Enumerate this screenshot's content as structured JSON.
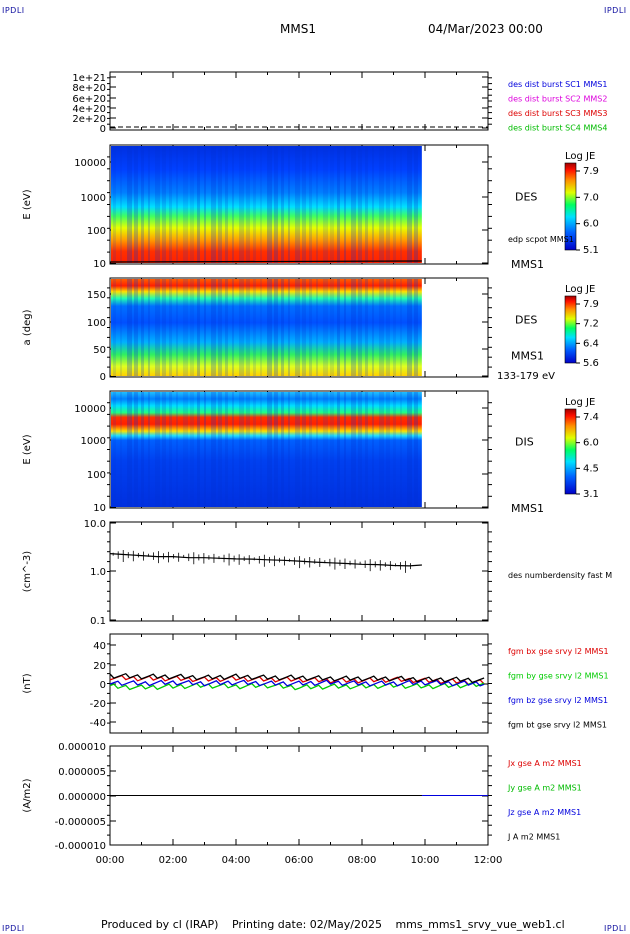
{
  "corner_label": "IPDLI",
  "header": {
    "mission": "MMS1",
    "datetime": "04/Mar/2023 00:00"
  },
  "footer": {
    "produced_by": "Produced by cl (IRAP)",
    "printing_date": "Printing date: 02/May/2025",
    "file_name": "mms_mms1_srvy_vue_web1.cl"
  },
  "chart_data": [
    {
      "type": "line",
      "ylim": [
        0,
        1.2e+21
      ],
      "ytick_labels": [
        "1e+21",
        "8e+20",
        "6e+20",
        "4e+20",
        "2e+20",
        "0"
      ],
      "legend_placement": "right",
      "series": [
        {
          "name": "des dist burst SC1 MMS1",
          "color": "#0000dd"
        },
        {
          "name": "des dist burst SC2 MMS2",
          "color": "#dd00dd"
        },
        {
          "name": "des dist burst SC3 MMS3",
          "color": "#dd0000"
        },
        {
          "name": "des dist burst SC4 MMS4",
          "color": "#00bb00"
        }
      ],
      "values": [
        0,
        0,
        0,
        0
      ]
    },
    {
      "type": "heatmap",
      "ylabel": "E (eV)",
      "yscale": "log",
      "ylim": [
        10,
        20000
      ],
      "ytick_labels": [
        "10000",
        "1000",
        "100",
        "10"
      ],
      "instrument": "DES",
      "spacecraft": "MMS1",
      "overlay_line": "edp scpot MMS1",
      "colorbar": {
        "label": "Log JE",
        "min": 5.1,
        "max": 8.0,
        "tick_labels": [
          "7.9",
          "7.0",
          "6.0",
          "5.1"
        ]
      },
      "data_end_hour": 9.9
    },
    {
      "type": "heatmap",
      "ylabel": "a (deg)",
      "ylim": [
        0,
        180
      ],
      "ytick_labels": [
        "150",
        "100",
        "50",
        "0"
      ],
      "instrument": "DES",
      "spacecraft": "MMS1",
      "energy_range": "133-179 eV",
      "colorbar": {
        "label": "Log JE",
        "min": 5.6,
        "max": 8.0,
        "tick_labels": [
          "7.9",
          "7.2",
          "6.4",
          "5.6"
        ]
      },
      "data_end_hour": 9.9
    },
    {
      "type": "heatmap",
      "ylabel": "E (eV)",
      "yscale": "log",
      "ylim": [
        10,
        25000
      ],
      "ytick_labels": [
        "10000",
        "1000",
        "100",
        "10"
      ],
      "instrument": "DIS",
      "spacecraft": "MMS1",
      "colorbar": {
        "label": "Log JE",
        "min": 3.1,
        "max": 7.6,
        "tick_labels": [
          "7.4",
          "6.0",
          "4.5",
          "3.1"
        ]
      },
      "data_end_hour": 9.9
    },
    {
      "type": "line",
      "ylabel": "(cm^-3)",
      "yscale": "log",
      "ylim": [
        0.1,
        10
      ],
      "ytick_labels": [
        "10.0",
        "1.0",
        "0.1"
      ],
      "series": [
        {
          "name": "des numberdensity fast M",
          "color": "#000000",
          "x": [
            0.0,
            0.5,
            1.0,
            1.5,
            2.0,
            2.5,
            3.0,
            3.5,
            4.0,
            4.5,
            5.0,
            5.5,
            6.0,
            6.5,
            7.0,
            7.5,
            8.0,
            8.5,
            9.0,
            9.5,
            9.9
          ],
          "y": [
            2.3,
            2.2,
            2.1,
            2.0,
            2.0,
            1.9,
            1.9,
            1.85,
            1.8,
            1.78,
            1.72,
            1.68,
            1.62,
            1.55,
            1.5,
            1.45,
            1.4,
            1.38,
            1.32,
            1.3,
            1.35
          ]
        }
      ]
    },
    {
      "type": "line",
      "ylabel": "(nT)",
      "ylim": [
        -50,
        50
      ],
      "ytick_labels": [
        "40",
        "20",
        "0",
        "-20",
        "-40"
      ],
      "series": [
        {
          "name": "fgm bx gse srvy l2 MMS1",
          "color": "#dd0000",
          "x": [
            0,
            1,
            2,
            3,
            4,
            5,
            6,
            7,
            8,
            9,
            10,
            11,
            12
          ],
          "y": [
            6,
            5,
            5,
            4,
            5,
            4,
            4,
            3,
            3,
            4,
            3,
            2,
            1
          ]
        },
        {
          "name": "fgm by gse srvy l2 MMS1",
          "color": "#00cc00",
          "x": [
            0,
            1,
            2,
            3,
            4,
            5,
            6,
            7,
            8,
            9,
            10,
            11,
            12
          ],
          "y": [
            -3,
            -4,
            -3,
            -2,
            -3,
            -2,
            -4,
            -3,
            -3,
            -2,
            -3,
            -2,
            -1
          ]
        },
        {
          "name": "fgm bz gse srvy l2 MMS1",
          "color": "#0000dd",
          "x": [
            0,
            1,
            2,
            3,
            4,
            5,
            6,
            7,
            8,
            9,
            10,
            11,
            12
          ],
          "y": [
            1,
            0,
            1,
            0,
            1,
            0,
            0,
            1,
            0,
            0,
            1,
            0,
            0
          ]
        },
        {
          "name": "fgm bt gse srvy l2 MMS1",
          "color": "#000000",
          "x": [
            0,
            1,
            2,
            3,
            4,
            5,
            6,
            7,
            8,
            9,
            10,
            11,
            12
          ],
          "y": [
            8,
            7,
            7,
            6,
            7,
            6,
            6,
            5,
            5,
            5,
            4,
            4,
            3
          ]
        }
      ]
    },
    {
      "type": "line",
      "ylabel": "(A/m2)",
      "ylim": [
        -1e-05,
        1e-05
      ],
      "ytick_labels": [
        "0.000010",
        "0.000005",
        "0.000000",
        "-0.000005",
        "-0.000010"
      ],
      "xtick_labels": [
        "00:00",
        "02:00",
        "04:00",
        "06:00",
        "08:00",
        "10:00",
        "12:00"
      ],
      "xlim_hours": [
        0,
        12
      ],
      "series": [
        {
          "name": "Jx gse A m2 MMS1",
          "color": "#dd0000",
          "x": [
            0,
            12
          ],
          "y": [
            0,
            0
          ]
        },
        {
          "name": "Jy gse A m2 MMS1",
          "color": "#00bb00",
          "x": [
            0,
            12
          ],
          "y": [
            0,
            0
          ]
        },
        {
          "name": "Jz gse A m2 MMS1",
          "color": "#0000dd",
          "x": [
            0,
            12
          ],
          "y": [
            0,
            0
          ]
        },
        {
          "name": "J A m2 MMS1",
          "color": "#000000",
          "x": [
            0,
            9.9
          ],
          "y": [
            0,
            0
          ]
        }
      ]
    }
  ]
}
